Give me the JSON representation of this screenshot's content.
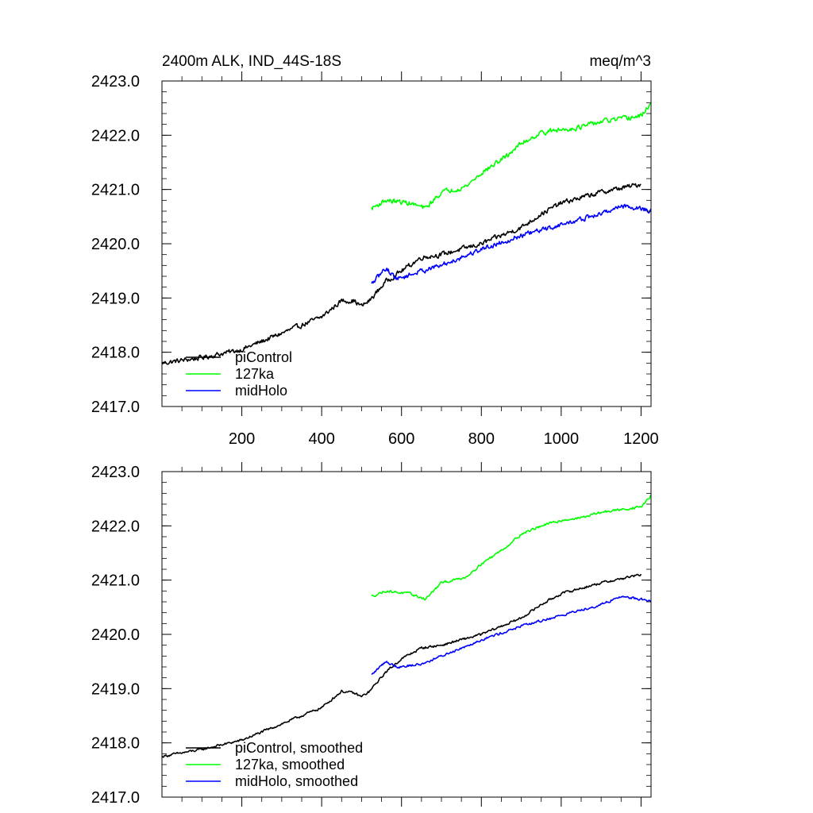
{
  "figure": {
    "left_title": "2400m ALK, IND_44S-18S",
    "right_title": "meq/m^3"
  },
  "chart_data": [
    {
      "type": "line",
      "title": "2400m ALK, IND_44S-18S",
      "units": "meq/m^3",
      "xlabel": "",
      "ylabel": "",
      "xlim": [
        0,
        1225
      ],
      "ylim": [
        2417.0,
        2423.0
      ],
      "x_ticks": [
        200,
        400,
        600,
        800,
        1000,
        1200
      ],
      "x_tick_labels": [
        "200",
        "400",
        "600",
        "800",
        "1000",
        "1200"
      ],
      "y_ticks": [
        2417.0,
        2418.0,
        2419.0,
        2420.0,
        2421.0,
        2422.0,
        2423.0
      ],
      "y_tick_labels": [
        "2417.0",
        "2418.0",
        "2419.0",
        "2420.0",
        "2421.0",
        "2422.0",
        "2423.0"
      ],
      "legend_position": "bottom-left",
      "noise": 0.07,
      "series": [
        {
          "name": "piControl",
          "color": "#000000",
          "x_range": [
            0,
            1200
          ],
          "anchors": [
            [
              0,
              2417.8
            ],
            [
              100,
              2417.9
            ],
            [
              200,
              2418.05
            ],
            [
              300,
              2418.35
            ],
            [
              400,
              2418.65
            ],
            [
              450,
              2418.95
            ],
            [
              480,
              2418.95
            ],
            [
              500,
              2418.85
            ],
            [
              520,
              2418.95
            ],
            [
              560,
              2419.3
            ],
            [
              600,
              2419.5
            ],
            [
              650,
              2419.75
            ],
            [
              700,
              2419.8
            ],
            [
              800,
              2420.0
            ],
            [
              900,
              2420.3
            ],
            [
              950,
              2420.55
            ],
            [
              1000,
              2420.75
            ],
            [
              1100,
              2420.95
            ],
            [
              1200,
              2421.1
            ]
          ]
        },
        {
          "name": "127ka",
          "color": "#00ff00",
          "x_range": [
            525,
            1225
          ],
          "anchors": [
            [
              525,
              2420.65
            ],
            [
              560,
              2420.8
            ],
            [
              620,
              2420.75
            ],
            [
              660,
              2420.65
            ],
            [
              700,
              2420.95
            ],
            [
              760,
              2421.05
            ],
            [
              800,
              2421.3
            ],
            [
              860,
              2421.6
            ],
            [
              900,
              2421.85
            ],
            [
              950,
              2422.05
            ],
            [
              1000,
              2422.1
            ],
            [
              1050,
              2422.15
            ],
            [
              1100,
              2422.25
            ],
            [
              1150,
              2422.3
            ],
            [
              1200,
              2422.35
            ],
            [
              1225,
              2422.6
            ]
          ]
        },
        {
          "name": "midHolo",
          "color": "#0000ff",
          "x_range": [
            525,
            1225
          ],
          "anchors": [
            [
              525,
              2419.25
            ],
            [
              560,
              2419.55
            ],
            [
              590,
              2419.35
            ],
            [
              650,
              2419.5
            ],
            [
              700,
              2419.6
            ],
            [
              800,
              2419.9
            ],
            [
              900,
              2420.15
            ],
            [
              1000,
              2420.35
            ],
            [
              1100,
              2420.55
            ],
            [
              1150,
              2420.7
            ],
            [
              1200,
              2420.65
            ],
            [
              1225,
              2420.6
            ]
          ]
        }
      ]
    },
    {
      "type": "line",
      "title": "",
      "xlabel": "",
      "ylabel": "",
      "xlim": [
        0,
        1225
      ],
      "ylim": [
        2417.0,
        2423.0
      ],
      "x_ticks": [
        200,
        400,
        600,
        800,
        1000,
        1200
      ],
      "x_tick_labels": [],
      "y_ticks": [
        2417.0,
        2418.0,
        2419.0,
        2420.0,
        2421.0,
        2422.0,
        2423.0
      ],
      "y_tick_labels": [
        "2417.0",
        "2418.0",
        "2419.0",
        "2420.0",
        "2421.0",
        "2422.0",
        "2423.0"
      ],
      "legend_position": "bottom-left",
      "noise": 0.035,
      "series": [
        {
          "name": "piControl, smoothed",
          "color": "#000000",
          "x_range": [
            0,
            1200
          ],
          "anchors": [
            [
              0,
              2417.75
            ],
            [
              100,
              2417.88
            ],
            [
              200,
              2418.05
            ],
            [
              300,
              2418.35
            ],
            [
              400,
              2418.65
            ],
            [
              450,
              2418.95
            ],
            [
              480,
              2418.92
            ],
            [
              500,
              2418.85
            ],
            [
              520,
              2418.95
            ],
            [
              560,
              2419.3
            ],
            [
              600,
              2419.55
            ],
            [
              650,
              2419.75
            ],
            [
              700,
              2419.8
            ],
            [
              800,
              2420.0
            ],
            [
              900,
              2420.3
            ],
            [
              950,
              2420.55
            ],
            [
              1000,
              2420.75
            ],
            [
              1100,
              2420.95
            ],
            [
              1200,
              2421.1
            ]
          ]
        },
        {
          "name": "127ka, smoothed",
          "color": "#00ff00",
          "x_range": [
            525,
            1225
          ],
          "anchors": [
            [
              525,
              2420.7
            ],
            [
              560,
              2420.8
            ],
            [
              620,
              2420.75
            ],
            [
              660,
              2420.65
            ],
            [
              700,
              2420.95
            ],
            [
              760,
              2421.05
            ],
            [
              800,
              2421.3
            ],
            [
              860,
              2421.6
            ],
            [
              900,
              2421.85
            ],
            [
              950,
              2422.0
            ],
            [
              1000,
              2422.1
            ],
            [
              1050,
              2422.15
            ],
            [
              1100,
              2422.25
            ],
            [
              1150,
              2422.3
            ],
            [
              1200,
              2422.35
            ],
            [
              1225,
              2422.55
            ]
          ]
        },
        {
          "name": "midHolo, smoothed",
          "color": "#0000ff",
          "x_range": [
            525,
            1225
          ],
          "anchors": [
            [
              525,
              2419.25
            ],
            [
              560,
              2419.5
            ],
            [
              590,
              2419.4
            ],
            [
              650,
              2419.45
            ],
            [
              700,
              2419.6
            ],
            [
              800,
              2419.9
            ],
            [
              900,
              2420.15
            ],
            [
              1000,
              2420.35
            ],
            [
              1100,
              2420.55
            ],
            [
              1150,
              2420.7
            ],
            [
              1200,
              2420.65
            ],
            [
              1225,
              2420.6
            ]
          ]
        }
      ]
    }
  ]
}
